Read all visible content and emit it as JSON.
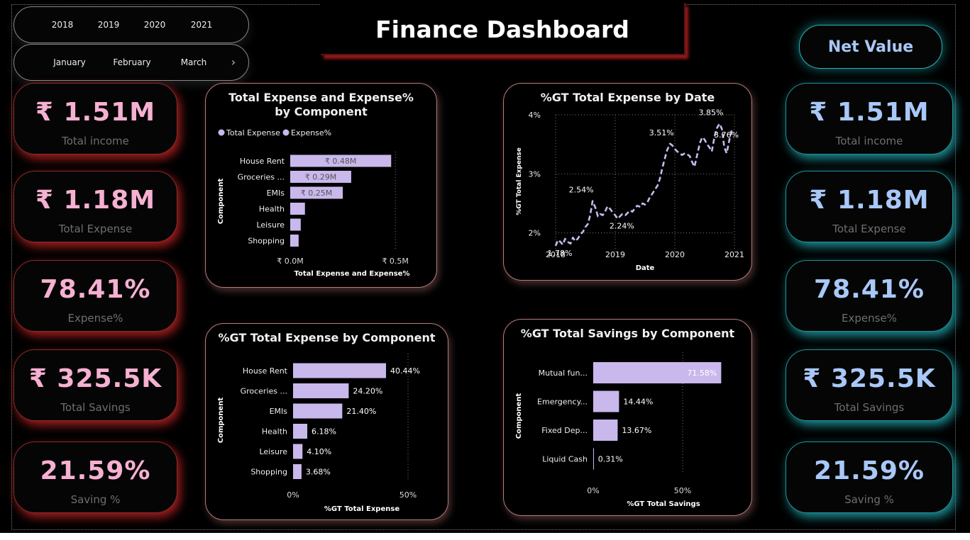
{
  "header": {
    "title": "Finance Dashboard"
  },
  "slicers": {
    "years": [
      "2018",
      "2019",
      "2020",
      "2021"
    ],
    "months": [
      "January",
      "February",
      "March"
    ],
    "next_icon": "chevron-right-icon"
  },
  "net_value_button": "Net Value",
  "kpis": [
    {
      "value": "₹ 1.51M",
      "label": "Total income"
    },
    {
      "value": "₹ 1.18M",
      "label": "Total Expense"
    },
    {
      "value": "78.41%",
      "label": "Expense%"
    },
    {
      "value": "₹ 325.5K",
      "label": "Total Savings"
    },
    {
      "value": "21.59%",
      "label": "Saving %"
    }
  ],
  "colors": {
    "bar": "#c9b8ec",
    "kpi_left": "#f6b0d2",
    "kpi_right": "#a8c8f8",
    "glow_red": "#dc2828",
    "glow_cyan": "#28c8d2"
  },
  "chart_data": [
    {
      "type": "bar",
      "orientation": "horizontal",
      "title": "Total Expense and Expense% by Component",
      "legend": [
        "Total Expense",
        "Expense%"
      ],
      "categories": [
        "House Rent",
        "Groceries ...",
        "EMIs",
        "Health",
        "Leisure",
        "Shopping"
      ],
      "values": [
        0.48,
        0.29,
        0.25,
        0.07,
        0.05,
        0.04
      ],
      "data_labels": [
        "₹ 0.48M",
        "₹ 0.29M",
        "₹ 0.25M",
        "",
        "",
        ""
      ],
      "xlabel": "Total Expense and Expense%",
      "ylabel": "Component",
      "xlim": [
        0,
        0.55
      ],
      "xticks": [
        {
          "v": 0,
          "label": "₹ 0.0M"
        },
        {
          "v": 0.5,
          "label": "₹ 0.5M"
        }
      ]
    },
    {
      "type": "line",
      "title": "%GT Total Expense by Date",
      "xlabel": "Date",
      "ylabel": "%GT Total Expense",
      "x": [
        2018.0,
        2018.04,
        2018.08,
        2018.12,
        2018.16,
        2018.2,
        2018.25,
        2018.29,
        2018.33,
        2018.37,
        2018.42,
        2018.46,
        2018.5,
        2018.54,
        2018.58,
        2018.62,
        2018.67,
        2018.71,
        2018.75,
        2018.79,
        2018.83,
        2018.87,
        2018.92,
        2018.96,
        2019.0,
        2019.04,
        2019.08,
        2019.12,
        2019.17,
        2019.21,
        2019.25,
        2019.29,
        2019.33,
        2019.37,
        2019.42,
        2019.46,
        2019.5,
        2019.54,
        2019.58,
        2019.62,
        2019.67,
        2019.71,
        2019.75,
        2019.79,
        2019.83,
        2019.87,
        2019.92,
        2019.96,
        2020.0,
        2020.04,
        2020.08,
        2020.12,
        2020.17,
        2020.21,
        2020.25,
        2020.29,
        2020.33,
        2020.37,
        2020.42,
        2020.46,
        2020.5,
        2020.54,
        2020.58,
        2020.62,
        2020.67,
        2020.71,
        2020.75,
        2020.79,
        2020.83,
        2020.87,
        2020.92,
        2020.96
      ],
      "y": [
        1.78,
        1.88,
        1.85,
        1.8,
        1.9,
        1.85,
        1.82,
        1.92,
        1.86,
        1.9,
        1.98,
        2.02,
        2.1,
        2.15,
        2.3,
        2.54,
        2.42,
        2.28,
        2.32,
        2.3,
        2.36,
        2.45,
        2.4,
        2.34,
        2.3,
        2.24,
        2.28,
        2.32,
        2.3,
        2.34,
        2.38,
        2.36,
        2.42,
        2.46,
        2.44,
        2.5,
        2.48,
        2.52,
        2.6,
        2.66,
        2.74,
        2.8,
        2.92,
        3.1,
        3.25,
        3.4,
        3.51,
        3.48,
        3.42,
        3.38,
        3.35,
        3.32,
        3.35,
        3.33,
        3.3,
        3.2,
        3.12,
        3.3,
        3.52,
        3.62,
        3.58,
        3.5,
        3.45,
        3.38,
        3.65,
        3.78,
        3.85,
        3.76,
        3.45,
        3.35,
        3.6,
        3.76
      ],
      "annotations": [
        {
          "x": 2018.0,
          "y": 1.78,
          "label": "1.78%"
        },
        {
          "x": 2018.62,
          "y": 2.54,
          "label": "2.54%"
        },
        {
          "x": 2019.04,
          "y": 2.24,
          "label": "2.24%"
        },
        {
          "x": 2019.92,
          "y": 3.51,
          "label": "3.51%"
        },
        {
          "x": 2020.75,
          "y": 3.85,
          "label": "3.85%"
        },
        {
          "x": 2020.96,
          "y": 3.76,
          "label": "3.76%"
        }
      ],
      "xticks": [
        2018,
        2019,
        2020,
        2021
      ],
      "yticks": [
        {
          "v": 2,
          "label": "2%"
        },
        {
          "v": 3,
          "label": "3%"
        },
        {
          "v": 4,
          "label": "4%"
        }
      ],
      "xlim": [
        2018,
        2021
      ],
      "ylim": [
        1.6,
        4.0
      ]
    },
    {
      "type": "bar",
      "orientation": "horizontal",
      "title": "%GT Total Expense by Component",
      "categories": [
        "House Rent",
        "Groceries ...",
        "EMIs",
        "Health",
        "Leisure",
        "Shopping"
      ],
      "values": [
        40.44,
        24.2,
        21.4,
        6.18,
        4.1,
        3.68
      ],
      "data_labels": [
        "40.44%",
        "24.20%",
        "21.40%",
        "6.18%",
        "4.10%",
        "3.68%"
      ],
      "xlabel": "%GT Total Expense",
      "ylabel": "Component",
      "xlim": [
        0,
        50
      ],
      "xticks": [
        {
          "v": 0,
          "label": "0%"
        },
        {
          "v": 50,
          "label": "50%"
        }
      ]
    },
    {
      "type": "bar",
      "orientation": "horizontal",
      "title": "%GT Total Savings by Component",
      "categories": [
        "Mutual fun...",
        "Emergency...",
        "Fixed Dep...",
        "Liquid Cash"
      ],
      "values": [
        71.58,
        14.44,
        13.67,
        0.31
      ],
      "data_labels": [
        "71.58%",
        "14.44%",
        "13.67%",
        "0.31%"
      ],
      "xlabel": "%GT Total Savings",
      "ylabel": "Component",
      "xlim": [
        0,
        50
      ],
      "xticks": [
        {
          "v": 0,
          "label": "0%"
        },
        {
          "v": 50,
          "label": "50%"
        }
      ]
    }
  ]
}
